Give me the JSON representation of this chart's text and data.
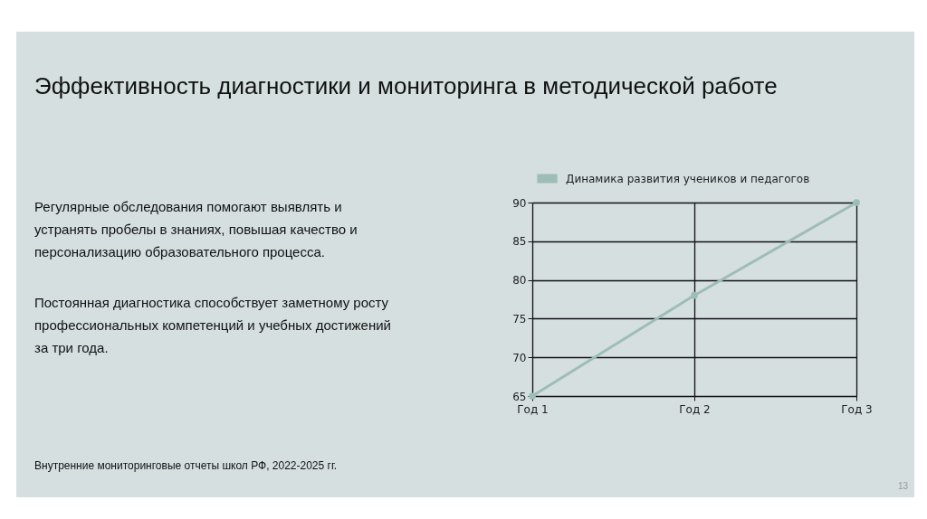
{
  "chart_data": {
    "type": "line",
    "title": "Эффективность диагностики и мониторинга в методической работе",
    "categories": [
      "Год 1",
      "Год 2",
      "Год 3"
    ],
    "series": [
      {
        "name": "Динамика развития учеников и педагогов",
        "color": "#9dbdb5",
        "values": [
          65,
          78,
          90
        ]
      }
    ],
    "ylim": [
      65,
      90
    ],
    "yticks": [
      65,
      70,
      75,
      80,
      85,
      90
    ],
    "grid": true,
    "legend": "top",
    "marker": "circle",
    "annotations": [
      "Регулярные обследования помогают выявлять и устранять пробелы в знаниях, повышая качество и персонализацию образовательного процесса.",
      "Постоянная диагностика способствует заметному росту профессиональных компетенций и учебных достижений за три года.",
      "Внутренние мониторинговые отчеты школ РФ, 2022-2025 гг.",
      "13"
    ]
  }
}
